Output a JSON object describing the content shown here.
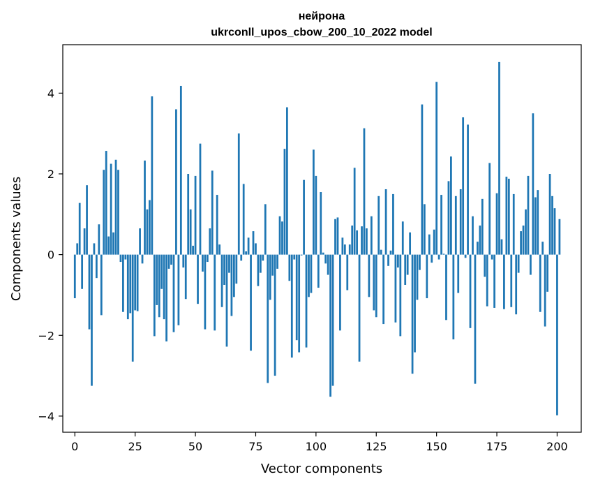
{
  "chart_data": {
    "type": "bar",
    "title": "нейрона",
    "subtitle": "ukrconll_upos_cbow_200_10_2022 model",
    "xlabel": "Vector components",
    "ylabel": "Components values",
    "xlim": [
      -5,
      210
    ],
    "ylim": [
      -4.4,
      5.2
    ],
    "xticks": [
      0,
      25,
      50,
      75,
      100,
      125,
      150,
      175,
      200
    ],
    "yticks": [
      -4,
      -2,
      0,
      2,
      4
    ],
    "ytick_labels": [
      "−4",
      "−2",
      "0",
      "2",
      "4"
    ],
    "grid": false,
    "color": "#1f77b4",
    "values": [
      -1.08,
      0.28,
      1.28,
      -0.85,
      0.65,
      1.72,
      -1.85,
      -3.25,
      0.28,
      -0.58,
      0.75,
      -1.5,
      2.1,
      2.57,
      0.45,
      2.25,
      0.55,
      2.35,
      2.1,
      -0.18,
      -1.42,
      -0.12,
      -1.6,
      -1.45,
      -2.65,
      -1.38,
      -1.4,
      0.65,
      -0.22,
      2.33,
      1.12,
      1.35,
      3.92,
      -2.02,
      -1.25,
      -1.55,
      -0.85,
      -1.6,
      -2.15,
      -0.35,
      -0.25,
      -1.92,
      3.6,
      -1.75,
      4.18,
      -0.32,
      -1.1,
      2.0,
      1.12,
      0.22,
      1.95,
      -1.22,
      2.75,
      -0.42,
      -1.85,
      -0.18,
      0.65,
      2.08,
      -1.88,
      1.48,
      0.25,
      -1.3,
      -0.75,
      -2.28,
      -0.45,
      -1.52,
      -1.05,
      -0.72,
      3.0,
      -0.15,
      1.75,
      0.08,
      0.42,
      -2.38,
      0.58,
      0.28,
      -0.78,
      -0.45,
      -0.15,
      1.25,
      -3.18,
      -1.12,
      -0.52,
      -3.0,
      -0.35,
      0.95,
      0.82,
      2.62,
      3.65,
      -0.65,
      -2.55,
      -0.12,
      -2.12,
      -2.42,
      -0.02,
      1.85,
      -2.3,
      -1.05,
      -0.95,
      2.6,
      1.95,
      -0.82,
      1.55,
      0.05,
      -0.22,
      -0.5,
      -3.52,
      -3.25,
      0.88,
      0.92,
      -1.88,
      0.42,
      0.25,
      -0.88,
      0.25,
      0.72,
      2.15,
      0.6,
      -2.65,
      0.7,
      3.13,
      0.65,
      -1.05,
      0.95,
      -1.38,
      -1.55,
      1.45,
      0.12,
      -1.72,
      1.62,
      -0.28,
      0.1,
      1.5,
      -1.68,
      -0.32,
      -2.02,
      0.82,
      -0.75,
      -0.5,
      0.55,
      -2.95,
      -2.42,
      -1.12,
      -0.38,
      3.72,
      1.25,
      -1.08,
      0.5,
      -0.2,
      0.62,
      4.28,
      -0.12,
      1.48,
      0.02,
      -1.62,
      1.82,
      2.43,
      -2.1,
      1.45,
      -0.95,
      1.62,
      3.4,
      -0.08,
      3.22,
      -1.82,
      0.95,
      -3.2,
      0.32,
      0.72,
      1.38,
      -0.55,
      -1.28,
      2.27,
      -0.12,
      -1.32,
      1.52,
      4.77,
      0.38,
      -1.35,
      1.93,
      1.88,
      -1.3,
      1.5,
      -1.48,
      -0.45,
      0.58,
      0.72,
      1.12,
      1.95,
      -0.5,
      3.5,
      1.42,
      1.6,
      -1.42,
      0.32,
      -1.78,
      -0.92,
      2.0,
      1.45,
      1.15,
      -3.98,
      0.88
    ]
  }
}
